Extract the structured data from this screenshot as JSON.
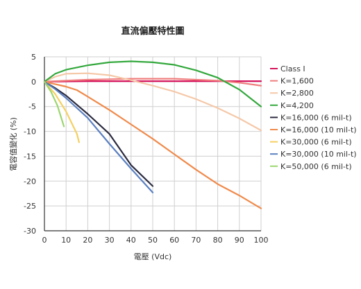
{
  "chart_data": {
    "type": "line",
    "title": "直流偏壓特性圖",
    "xlabel": "電壓 (Vdc)",
    "ylabel": "電容值變化 (%)",
    "xlim": [
      0,
      100
    ],
    "ylim": [
      -30,
      5
    ],
    "xticks": [
      0,
      10,
      20,
      30,
      40,
      50,
      60,
      70,
      80,
      90,
      100
    ],
    "yticks": [
      5,
      0,
      -5,
      -10,
      -15,
      -20,
      -25,
      -30
    ],
    "grid": true,
    "legend_position": "right",
    "series": [
      {
        "name": "Class I",
        "color": "#d6135a",
        "points": [
          [
            0,
            0
          ],
          [
            10,
            0.05
          ],
          [
            20,
            0.1
          ],
          [
            30,
            0.1
          ],
          [
            40,
            0.1
          ],
          [
            50,
            0.1
          ],
          [
            60,
            0.1
          ],
          [
            70,
            0.1
          ],
          [
            80,
            0.1
          ],
          [
            90,
            0.1
          ],
          [
            100,
            0.1
          ]
        ]
      },
      {
        "name": "K=1,600",
        "color": "#f07d7d",
        "points": [
          [
            0,
            0
          ],
          [
            10,
            0.2
          ],
          [
            20,
            0.4
          ],
          [
            30,
            0.5
          ],
          [
            40,
            0.6
          ],
          [
            50,
            0.6
          ],
          [
            60,
            0.6
          ],
          [
            70,
            0.4
          ],
          [
            80,
            0.2
          ],
          [
            90,
            -0.2
          ],
          [
            100,
            -0.8
          ]
        ]
      },
      {
        "name": "K=2,800",
        "color": "#f5c8a8",
        "points": [
          [
            0,
            0
          ],
          [
            5,
            1.0
          ],
          [
            10,
            1.6
          ],
          [
            20,
            1.7
          ],
          [
            30,
            1.3
          ],
          [
            40,
            0.3
          ],
          [
            50,
            -0.8
          ],
          [
            60,
            -2.0
          ],
          [
            70,
            -3.5
          ],
          [
            80,
            -5.3
          ],
          [
            90,
            -7.4
          ],
          [
            100,
            -9.8
          ]
        ]
      },
      {
        "name": "K=4,200",
        "color": "#33a83c",
        "points": [
          [
            0,
            0
          ],
          [
            5,
            1.6
          ],
          [
            10,
            2.4
          ],
          [
            20,
            3.3
          ],
          [
            30,
            3.9
          ],
          [
            40,
            4.1
          ],
          [
            50,
            3.9
          ],
          [
            60,
            3.4
          ],
          [
            70,
            2.3
          ],
          [
            80,
            0.8
          ],
          [
            90,
            -1.6
          ],
          [
            100,
            -5.0
          ]
        ]
      },
      {
        "name": "K=16,000 (6 mil-t)",
        "color": "#2a2a40",
        "points": [
          [
            0,
            0
          ],
          [
            5,
            -1.3
          ],
          [
            10,
            -2.8
          ],
          [
            20,
            -6.5
          ],
          [
            30,
            -10.5
          ],
          [
            40,
            -16.8
          ],
          [
            50,
            -21.0
          ]
        ]
      },
      {
        "name": "K=16,000 (10 mil-t)",
        "color": "#f08a4b",
        "points": [
          [
            0,
            0
          ],
          [
            5,
            -0.5
          ],
          [
            10,
            -1.0
          ],
          [
            15,
            -1.7
          ],
          [
            20,
            -3.0
          ],
          [
            30,
            -5.7
          ],
          [
            40,
            -8.6
          ],
          [
            50,
            -11.5
          ],
          [
            60,
            -14.6
          ],
          [
            70,
            -17.7
          ],
          [
            80,
            -20.6
          ],
          [
            90,
            -22.9
          ],
          [
            100,
            -25.5
          ]
        ]
      },
      {
        "name": "K=30,000 (6 mil-t)",
        "color": "#f5d060",
        "points": [
          [
            0,
            0
          ],
          [
            5,
            -2.5
          ],
          [
            10,
            -6.0
          ],
          [
            15,
            -10.5
          ],
          [
            16,
            -12.2
          ]
        ]
      },
      {
        "name": "K=30,000 (10 mil-t)",
        "color": "#5a7fc0",
        "points": [
          [
            0,
            0
          ],
          [
            5,
            -1.5
          ],
          [
            10,
            -3.3
          ],
          [
            20,
            -7.3
          ],
          [
            30,
            -12.5
          ],
          [
            40,
            -17.5
          ],
          [
            50,
            -22.3
          ]
        ]
      },
      {
        "name": "K=50,000 (6 mil-t)",
        "color": "#9bd66e",
        "points": [
          [
            0,
            0
          ],
          [
            3,
            -2.0
          ],
          [
            6,
            -4.8
          ],
          [
            9,
            -9.0
          ]
        ]
      }
    ]
  }
}
